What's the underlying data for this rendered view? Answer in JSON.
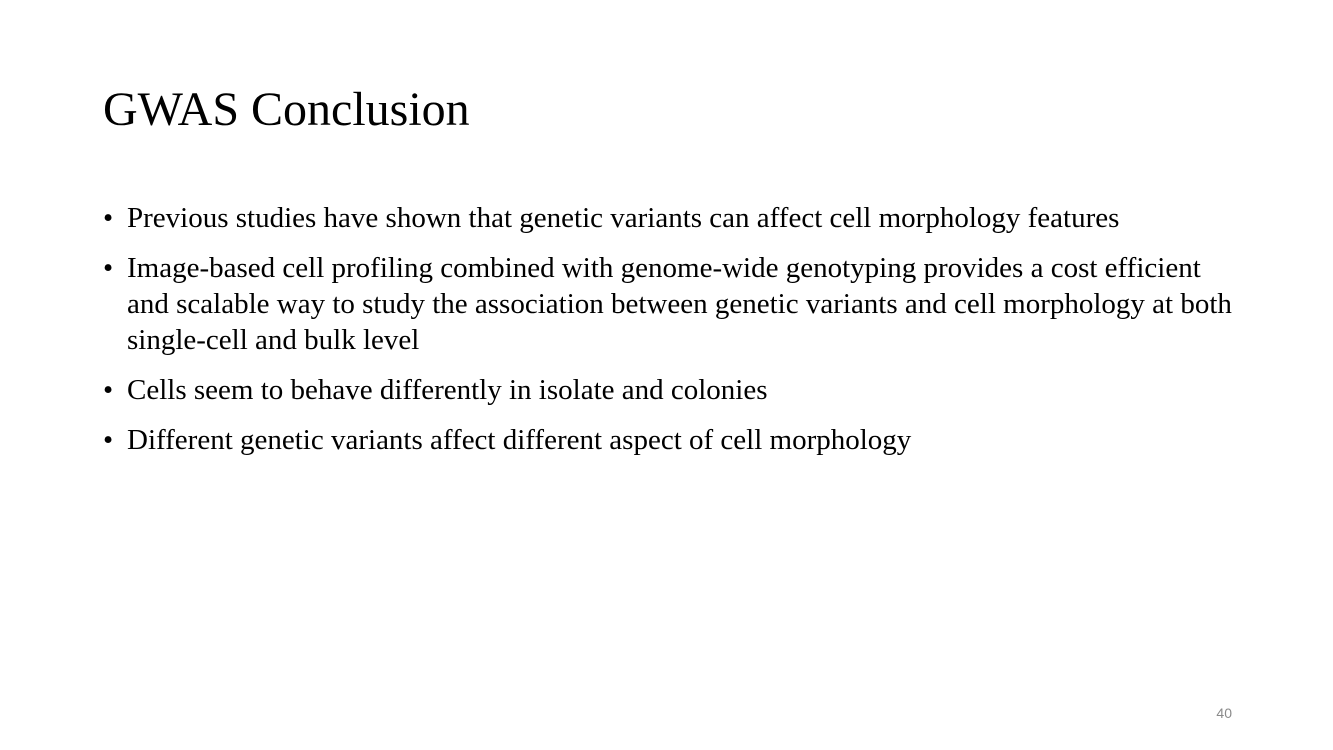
{
  "slide": {
    "title": "GWAS Conclusion",
    "bullets": [
      "Previous studies have shown that genetic variants can affect cell morphology features",
      "Image-based cell profiling combined with genome-wide genotyping provides a cost efficient and scalable way to study the association between genetic variants and cell morphology at both single-cell and bulk level",
      "Cells seem to behave differently in isolate and colonies",
      "Different genetic variants affect different aspect of cell morphology"
    ],
    "bullet_marker": "•",
    "page_number": "40"
  }
}
